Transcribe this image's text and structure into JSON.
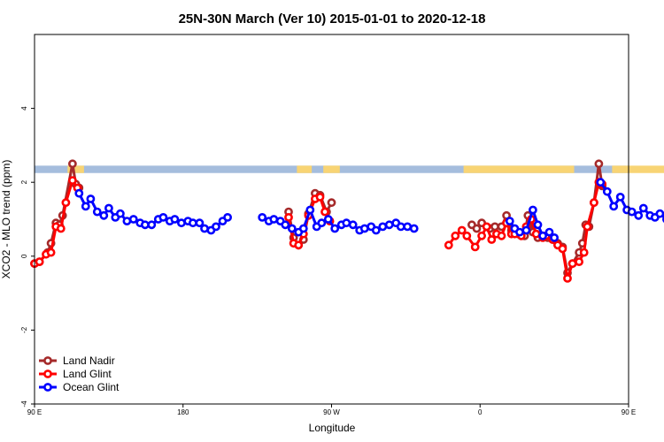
{
  "chart_data": {
    "type": "line",
    "title": "25N-30N March (Ver 10)   2015-01-01 to 2020-12-18",
    "xlabel": "Longitude",
    "ylabel": "XCO2 - MLO trend (ppm)",
    "xlim": [
      90,
      450
    ],
    "ylim": [
      -4,
      6
    ],
    "x_ticks": [
      {
        "value": 90,
        "label": "90 E"
      },
      {
        "value": 180,
        "label": "180"
      },
      {
        "value": 270,
        "label": "90 W"
      },
      {
        "value": 360,
        "label": "0"
      },
      {
        "value": 450,
        "label": "90 E"
      },
      {
        "value": 540,
        "label": "180"
      }
    ],
    "y_ticks": [
      {
        "value": -4,
        "label": "-4"
      },
      {
        "value": -2,
        "label": "-2"
      },
      {
        "value": 0,
        "label": "0"
      },
      {
        "value": 2,
        "label": "2"
      },
      {
        "value": 4,
        "label": "4"
      }
    ],
    "land_band": {
      "y_range": [
        2.25,
        2.45
      ],
      "ocean_color": "#a5bddd",
      "land_color": "#f8d474",
      "land_segments": [
        [
          110,
          120
        ],
        [
          249,
          258
        ],
        [
          265,
          275
        ],
        [
          350,
          417
        ],
        [
          440,
          474
        ]
      ]
    },
    "legend": {
      "position": "bottom-left",
      "entries": [
        {
          "name": "Land Nadir",
          "color": "#a52a2a"
        },
        {
          "name": "Land Glint",
          "color": "#ff0000"
        },
        {
          "name": "Ocean Glint",
          "color": "#0000ff"
        }
      ]
    },
    "series": [
      {
        "name": "Land Nadir",
        "color": "#a52a2a",
        "segments": [
          [
            [
              90,
              -0.2
            ],
            [
              93,
              -0.15
            ],
            [
              98,
              0.1
            ],
            [
              100,
              0.35
            ],
            [
              103,
              0.9
            ],
            [
              105,
              0.85
            ],
            [
              107,
              1.1
            ],
            [
              113,
              2.5
            ],
            [
              115,
              1.95
            ],
            [
              117,
              1.85
            ]
          ],
          [
            [
              244,
              1.2
            ],
            [
              247,
              0.5
            ],
            [
              250,
              0.3
            ],
            [
              253,
              0.45
            ],
            [
              256,
              1.15
            ],
            [
              260,
              1.7
            ],
            [
              263,
              1.65
            ],
            [
              267,
              1.2
            ],
            [
              270,
              1.45
            ]
          ],
          [
            [
              355,
              0.85
            ],
            [
              358,
              0.75
            ],
            [
              361,
              0.9
            ],
            [
              366,
              0.75
            ],
            [
              369,
              0.8
            ],
            [
              373,
              0.8
            ],
            [
              376,
              1.1
            ],
            [
              379,
              0.7
            ],
            [
              383,
              0.6
            ],
            [
              387,
              0.55
            ],
            [
              389,
              1.1
            ],
            [
              392,
              0.65
            ],
            [
              395,
              0.5
            ],
            [
              398,
              0.55
            ],
            [
              401,
              0.5
            ],
            [
              404,
              0.45
            ],
            [
              407,
              0.35
            ],
            [
              410,
              0.25
            ],
            [
              413,
              -0.45
            ],
            [
              416,
              -0.2
            ],
            [
              420,
              0.1
            ],
            [
              422,
              0.35
            ],
            [
              424,
              0.85
            ],
            [
              426,
              0.8
            ],
            [
              429,
              1.45
            ],
            [
              432,
              2.5
            ],
            [
              434,
              1.9
            ]
          ]
        ]
      },
      {
        "name": "Land Glint",
        "color": "#ff0000",
        "segments": [
          [
            [
              90,
              -0.2
            ],
            [
              93,
              -0.15
            ],
            [
              97,
              0.05
            ],
            [
              100,
              0.1
            ],
            [
              103,
              0.8
            ],
            [
              106,
              0.75
            ],
            [
              109,
              1.45
            ],
            [
              113,
              2.05
            ],
            [
              116,
              1.85
            ]
          ],
          [
            [
              244,
              1.05
            ],
            [
              247,
              0.35
            ],
            [
              250,
              0.3
            ],
            [
              253,
              0.6
            ],
            [
              256,
              1.1
            ],
            [
              260,
              1.55
            ],
            [
              263,
              1.6
            ],
            [
              266,
              1.2
            ],
            [
              269,
              0.95
            ]
          ],
          [
            [
              341,
              0.3
            ],
            [
              345,
              0.55
            ],
            [
              349,
              0.7
            ],
            [
              352,
              0.55
            ],
            [
              357,
              0.25
            ],
            [
              361,
              0.55
            ],
            [
              364,
              0.8
            ],
            [
              367,
              0.45
            ],
            [
              370,
              0.6
            ],
            [
              373,
              0.55
            ],
            [
              376,
              0.9
            ],
            [
              379,
              0.6
            ],
            [
              381,
              0.6
            ],
            [
              385,
              0.55
            ],
            [
              388,
              0.8
            ],
            [
              391,
              1.0
            ],
            [
              394,
              0.6
            ],
            [
              398,
              0.5
            ],
            [
              400,
              0.55
            ],
            [
              404,
              0.45
            ],
            [
              407,
              0.3
            ],
            [
              410,
              0.2
            ],
            [
              413,
              -0.6
            ],
            [
              416,
              -0.2
            ],
            [
              420,
              -0.15
            ],
            [
              423,
              0.1
            ],
            [
              425,
              0.8
            ],
            [
              429,
              1.45
            ],
            [
              432,
              2.0
            ],
            [
              434,
              1.95
            ]
          ]
        ]
      },
      {
        "name": "Ocean Glint",
        "color": "#0000ff",
        "segments": [
          [
            [
              117,
              1.7
            ],
            [
              121,
              1.35
            ],
            [
              124,
              1.55
            ],
            [
              128,
              1.2
            ],
            [
              132,
              1.1
            ],
            [
              135,
              1.3
            ],
            [
              139,
              1.05
            ],
            [
              142,
              1.15
            ],
            [
              146,
              0.95
            ],
            [
              150,
              1.0
            ],
            [
              154,
              0.9
            ],
            [
              157,
              0.85
            ],
            [
              161,
              0.85
            ],
            [
              165,
              1.0
            ],
            [
              168,
              1.05
            ],
            [
              172,
              0.95
            ],
            [
              175,
              1.0
            ],
            [
              179,
              0.9
            ],
            [
              183,
              0.95
            ],
            [
              186,
              0.9
            ],
            [
              190,
              0.9
            ],
            [
              193,
              0.75
            ],
            [
              197,
              0.7
            ],
            [
              200,
              0.8
            ],
            [
              204,
              0.95
            ],
            [
              207,
              1.05
            ]
          ],
          [
            [
              228,
              1.05
            ],
            [
              232,
              0.95
            ],
            [
              235,
              1.0
            ],
            [
              239,
              0.95
            ],
            [
              242,
              0.85
            ],
            [
              246,
              0.75
            ],
            [
              250,
              0.65
            ],
            [
              253,
              0.75
            ],
            [
              257,
              1.25
            ],
            [
              261,
              0.8
            ],
            [
              264,
              0.9
            ],
            [
              268,
              1.0
            ],
            [
              272,
              0.75
            ],
            [
              276,
              0.85
            ],
            [
              279,
              0.9
            ],
            [
              283,
              0.85
            ],
            [
              287,
              0.7
            ],
            [
              290,
              0.75
            ],
            [
              294,
              0.8
            ],
            [
              297,
              0.7
            ],
            [
              301,
              0.8
            ],
            [
              305,
              0.85
            ],
            [
              309,
              0.9
            ],
            [
              312,
              0.8
            ],
            [
              316,
              0.8
            ],
            [
              320,
              0.75
            ]
          ],
          [
            [
              378,
              0.95
            ],
            [
              381,
              0.75
            ],
            [
              384,
              0.65
            ],
            [
              388,
              0.7
            ],
            [
              392,
              1.25
            ],
            [
              395,
              0.85
            ],
            [
              398,
              0.55
            ],
            [
              402,
              0.65
            ],
            [
              405,
              0.5
            ]
          ],
          [
            [
              433,
              2.0
            ],
            [
              437,
              1.75
            ],
            [
              441,
              1.35
            ],
            [
              445,
              1.6
            ],
            [
              449,
              1.25
            ],
            [
              452,
              1.2
            ],
            [
              456,
              1.1
            ],
            [
              459,
              1.3
            ],
            [
              463,
              1.1
            ],
            [
              466,
              1.05
            ],
            [
              469,
              1.15
            ],
            [
              473,
              1.0
            ],
            [
              477,
              1.0
            ]
          ]
        ]
      }
    ]
  }
}
